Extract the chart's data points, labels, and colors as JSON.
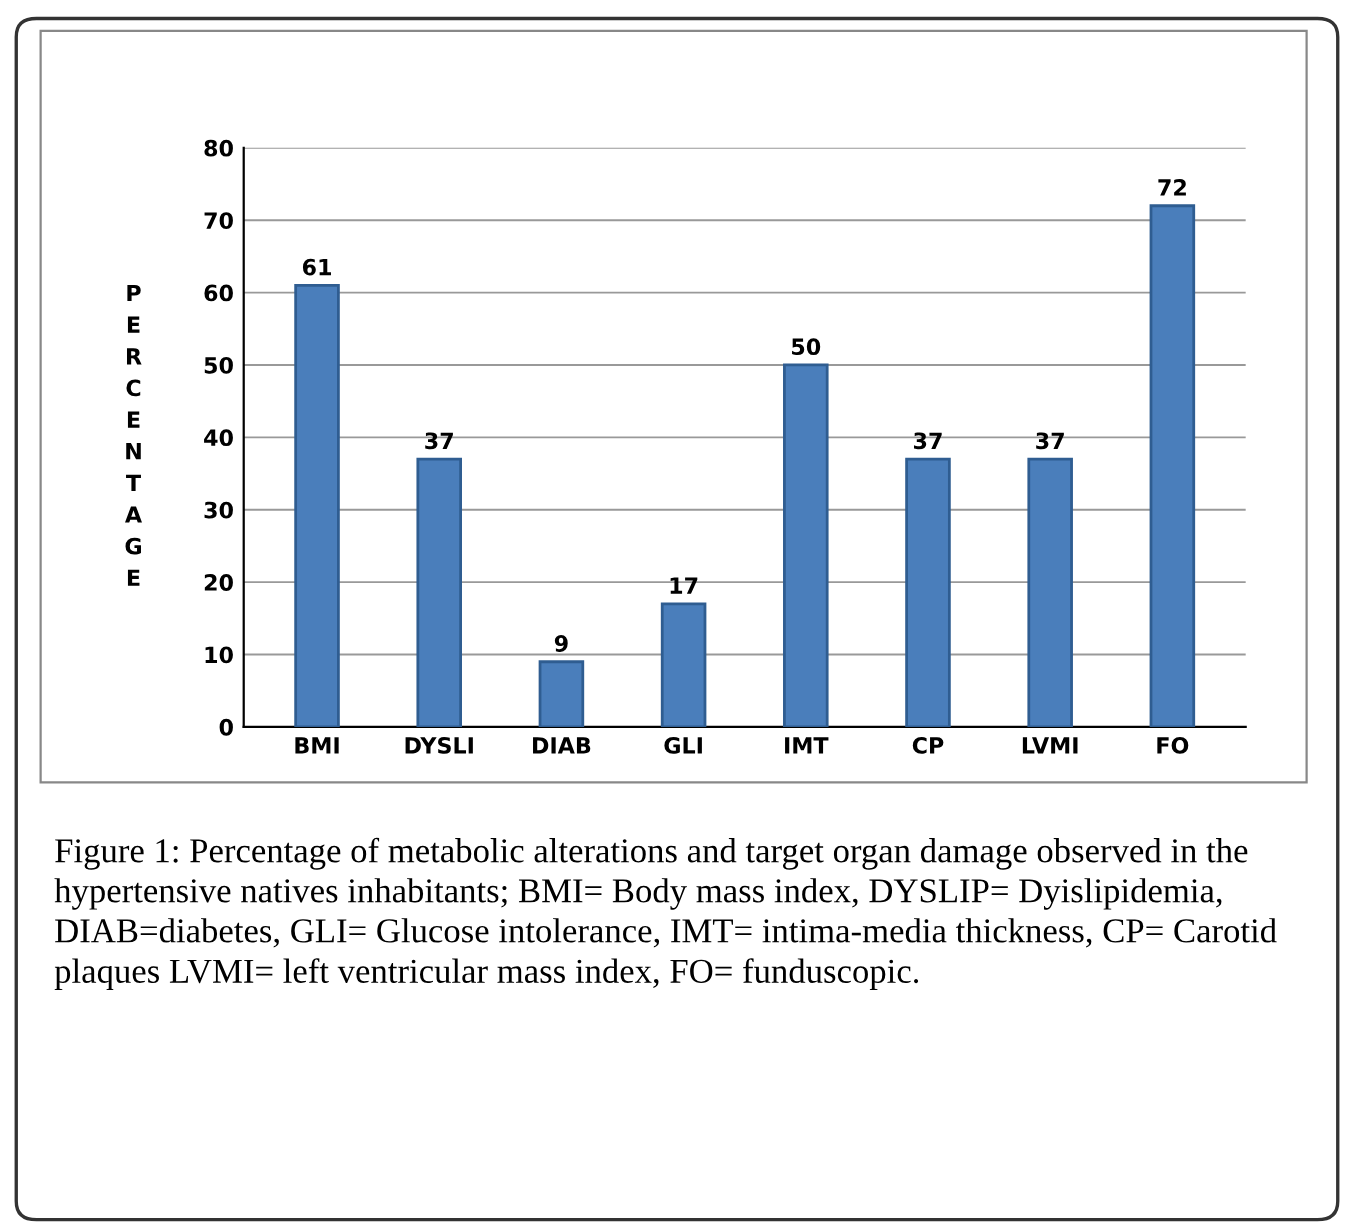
{
  "chart_data": {
    "type": "bar",
    "ylabel": "PERCENTAGE",
    "categories": [
      "BMI",
      "DYSLI",
      "DIAB",
      "GLI",
      "IMT",
      "CP",
      "LVMI",
      "FO"
    ],
    "values": [
      61,
      37,
      9,
      17,
      50,
      37,
      37,
      72
    ],
    "color": "#4a7ebb",
    "ylim": [
      0,
      80
    ],
    "yticks": [
      0,
      10,
      20,
      30,
      40,
      50,
      60,
      70,
      80
    ],
    "grid": "y",
    "data_labels": true,
    "annotations": [
      "Figure 1: Percentage of metabolic alterations and target organ damage observed in the hypertensive natives inhabitants; BMI= Body mass index, DYSLIP= Dyislipidemia, DIAB=diabetes, GLI= Glucose intolerance, IMT= intima-media thickness, CP= Carotid plaques LVMI= left ventricular mass index, FO= funduscopic."
    ]
  }
}
